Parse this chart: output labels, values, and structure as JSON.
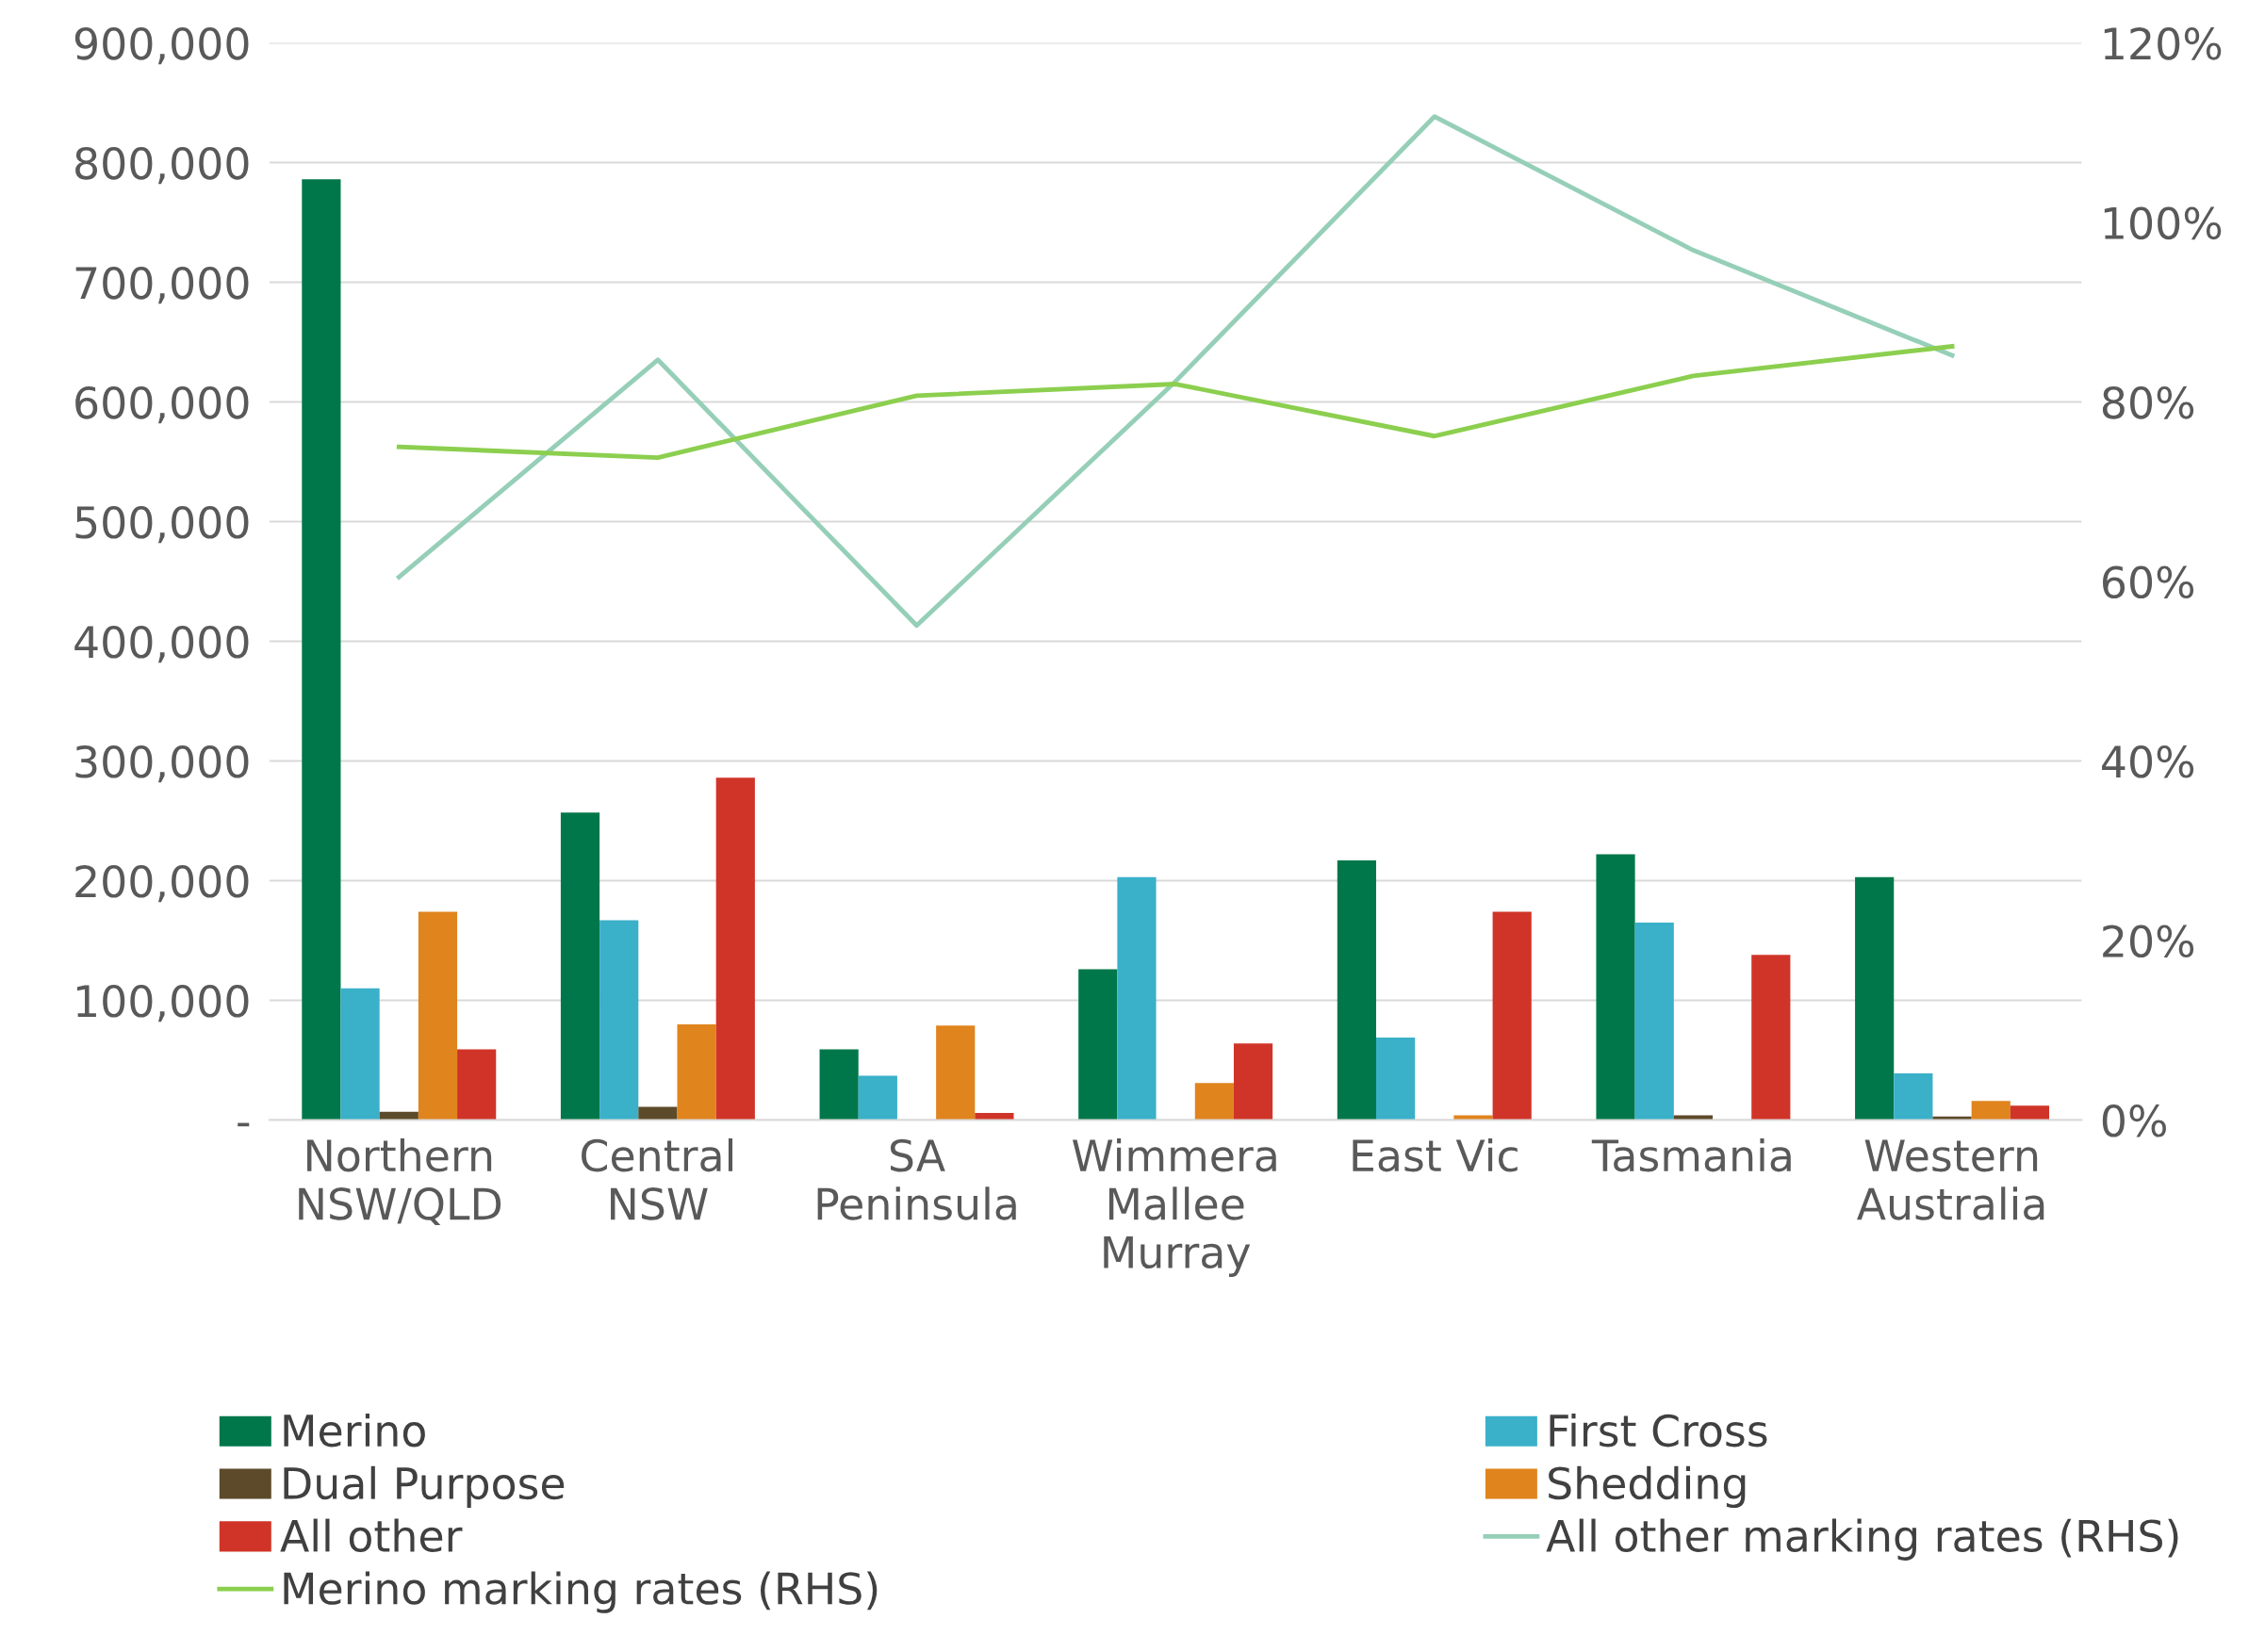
{
  "chart_data": {
    "type": "bar",
    "categories": [
      "Northern\nNSW/QLD",
      "Central\nNSW",
      "SA\nPeninsula",
      "Wimmera\nMallee\nMurray",
      "East Vic",
      "Tasmania",
      "Western\nAustralia"
    ],
    "series": [
      {
        "name": "Merino",
        "color": "#00774a",
        "values": [
          786000,
          257000,
          59000,
          126000,
          217000,
          222000,
          203000
        ]
      },
      {
        "name": "First Cross",
        "color": "#3ab0c9",
        "values": [
          110000,
          167000,
          37000,
          203000,
          69000,
          165000,
          39000
        ]
      },
      {
        "name": "Dual Purpose",
        "color": "#5c4a2a",
        "values": [
          7000,
          11000,
          0,
          0,
          0,
          4000,
          3000
        ]
      },
      {
        "name": "Shedding",
        "color": "#e0841e",
        "values": [
          174000,
          80000,
          79000,
          31000,
          4000,
          0,
          16000
        ]
      },
      {
        "name": "All other",
        "color": "#d03428",
        "values": [
          59000,
          286000,
          6000,
          64000,
          174000,
          138000,
          12000
        ]
      },
      {
        "name": "All other marking rates (RHS)",
        "color": "#96cfb8",
        "type": "line",
        "axis": "y2",
        "values": [
          60.5,
          84.7,
          55.1,
          82.3,
          111.8,
          96.9,
          85.2
        ]
      },
      {
        "name": "Merino marking rates (RHS)",
        "color": "#8ccf4f",
        "type": "line",
        "axis": "y2",
        "values": [
          75.0,
          73.8,
          80.7,
          82.0,
          76.2,
          82.9,
          86.2
        ]
      }
    ],
    "ylim": [
      0,
      900000
    ],
    "yticks": [
      {
        "value": 0,
        "label": "-"
      },
      {
        "value": 100000,
        "label": "100,000"
      },
      {
        "value": 200000,
        "label": "200,000"
      },
      {
        "value": 300000,
        "label": "300,000"
      },
      {
        "value": 400000,
        "label": "400,000"
      },
      {
        "value": 500000,
        "label": "500,000"
      },
      {
        "value": 600000,
        "label": "600,000"
      },
      {
        "value": 700000,
        "label": "700,000"
      },
      {
        "value": 800000,
        "label": "800,000"
      },
      {
        "value": 900000,
        "label": "900,000"
      }
    ],
    "y2lim": [
      0,
      120
    ],
    "y2ticks": [
      {
        "value": 0,
        "label": "0%"
      },
      {
        "value": 20,
        "label": "20%"
      },
      {
        "value": 40,
        "label": "40%"
      },
      {
        "value": 60,
        "label": "60%"
      },
      {
        "value": 80,
        "label": "80%"
      },
      {
        "value": 100,
        "label": "100%"
      },
      {
        "value": 120,
        "label": "120%"
      }
    ],
    "grid": "y",
    "legend": "bottom"
  }
}
